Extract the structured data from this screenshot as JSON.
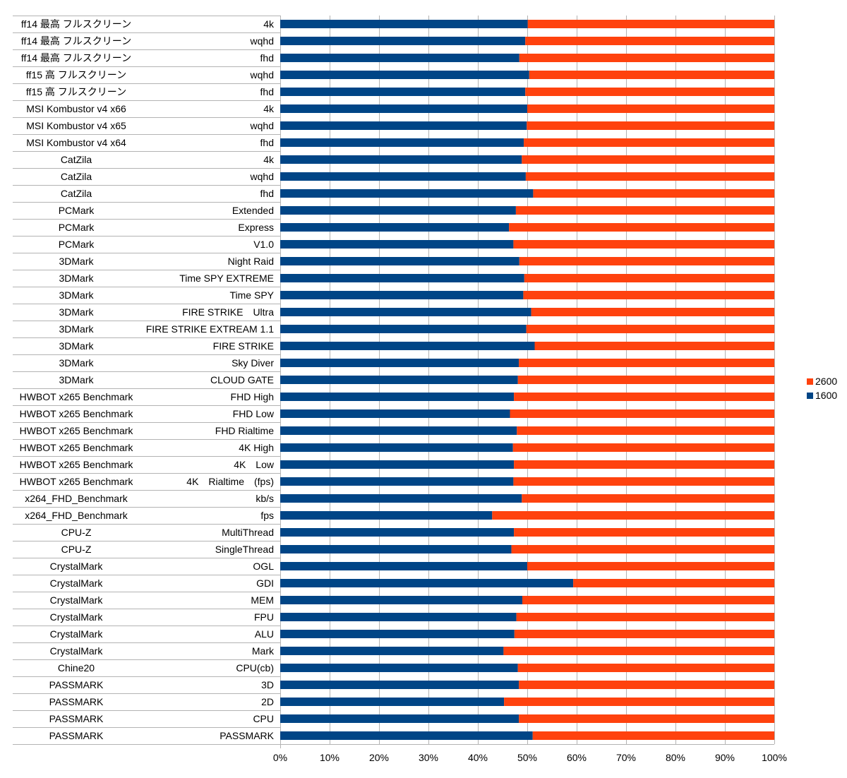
{
  "chart_data": {
    "type": "bar",
    "orientation": "horizontal",
    "stacking": "percent",
    "categories": [
      [
        "ff14 最高 フルスクリーン",
        "4k"
      ],
      [
        "ff14 最高 フルスクリーン",
        "wqhd"
      ],
      [
        "ff14 最高 フルスクリーン",
        "fhd"
      ],
      [
        "ff15 高 フルスクリーン",
        "wqhd"
      ],
      [
        "ff15 高 フルスクリーン",
        "fhd"
      ],
      [
        "MSI Kombustor v4 x66",
        "4k"
      ],
      [
        "MSI Kombustor v4 x65",
        "wqhd"
      ],
      [
        "MSI Kombustor v4 x64",
        "fhd"
      ],
      [
        "CatZila",
        "4k"
      ],
      [
        "CatZila",
        "wqhd"
      ],
      [
        "CatZila",
        "fhd"
      ],
      [
        "PCMark",
        "Extended"
      ],
      [
        "PCMark",
        "Express"
      ],
      [
        "PCMark",
        "V1.0"
      ],
      [
        "3DMark",
        "Night Raid"
      ],
      [
        "3DMark",
        "Time SPY EXTREME"
      ],
      [
        "3DMark",
        "Time SPY"
      ],
      [
        "3DMark",
        "FIRE STRIKE　Ultra"
      ],
      [
        "3DMark",
        "FIRE STRIKE EXTREAM 1.1"
      ],
      [
        "3DMark",
        "FIRE STRIKE"
      ],
      [
        "3DMark",
        "Sky Diver"
      ],
      [
        "3DMark",
        "CLOUD GATE"
      ],
      [
        "HWBOT x265 Benchmark",
        "FHD High"
      ],
      [
        "HWBOT x265 Benchmark",
        "FHD Low"
      ],
      [
        "HWBOT x265 Benchmark",
        "FHD Rialtime"
      ],
      [
        "HWBOT x265 Benchmark",
        "4K High"
      ],
      [
        "HWBOT x265 Benchmark",
        "4K　Low"
      ],
      [
        "HWBOT x265 Benchmark",
        "4K　Rialtime　(fps)"
      ],
      [
        "x264_FHD_Benchmark",
        "kb/s"
      ],
      [
        "x264_FHD_Benchmark",
        "fps"
      ],
      [
        "CPU-Z",
        "MultiThread"
      ],
      [
        "CPU-Z",
        "SingleThread"
      ],
      [
        "CrystalMark",
        "OGL"
      ],
      [
        "CrystalMark",
        "GDI"
      ],
      [
        "CrystalMark",
        "MEM"
      ],
      [
        "CrystalMark",
        "FPU"
      ],
      [
        "CrystalMark",
        "ALU"
      ],
      [
        "CrystalMark",
        "Mark"
      ],
      [
        "Chine20",
        "CPU(cb)"
      ],
      [
        "PASSMARK",
        "3D"
      ],
      [
        "PASSMARK",
        "2D"
      ],
      [
        "PASSMARK",
        "CPU"
      ],
      [
        "PASSMARK",
        "PASSMARK"
      ]
    ],
    "series": [
      {
        "name": "1600",
        "color": "#004586",
        "values": [
          50.1,
          49.6,
          48.4,
          50.4,
          49.6,
          50.0,
          49.9,
          49.3,
          48.9,
          49.7,
          51.2,
          47.7,
          46.3,
          47.2,
          48.4,
          49.4,
          49.2,
          50.8,
          49.8,
          51.5,
          48.3,
          48.1,
          47.3,
          46.5,
          47.9,
          47.1,
          47.3,
          47.2,
          48.9,
          42.9,
          47.3,
          46.8,
          50.0,
          59.3,
          49.0,
          47.8,
          47.4,
          45.2,
          48.1,
          48.3,
          45.3,
          48.3,
          51.1
        ]
      },
      {
        "name": "2600",
        "color": "#ff420e",
        "values": [
          49.9,
          50.4,
          51.6,
          49.6,
          50.4,
          50.0,
          50.1,
          50.7,
          51.1,
          50.3,
          48.8,
          52.3,
          53.7,
          52.8,
          51.6,
          50.6,
          50.8,
          49.2,
          50.2,
          48.5,
          51.7,
          51.9,
          52.7,
          53.5,
          52.1,
          52.9,
          52.7,
          52.8,
          51.1,
          57.1,
          52.7,
          53.2,
          50.0,
          40.7,
          51.0,
          52.2,
          52.6,
          54.8,
          51.9,
          51.7,
          54.7,
          51.7,
          48.9
        ]
      }
    ],
    "x_ticks": [
      "0%",
      "10%",
      "20%",
      "30%",
      "40%",
      "50%",
      "60%",
      "70%",
      "80%",
      "90%",
      "100%"
    ],
    "xlim": [
      0,
      100
    ],
    "legend": {
      "position": "right",
      "entries": [
        "2600",
        "1600"
      ]
    },
    "grid": true
  }
}
